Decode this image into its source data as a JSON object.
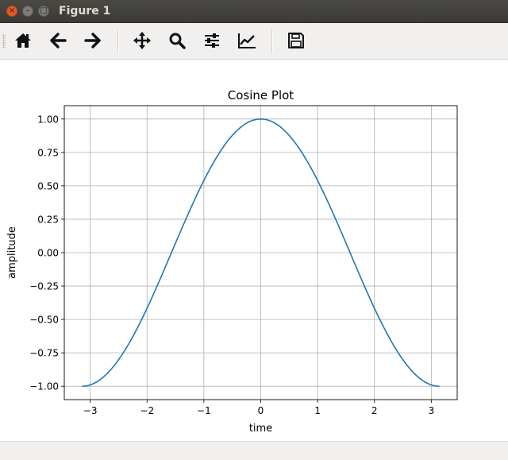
{
  "window": {
    "title": "Figure 1",
    "controls": {
      "close": "×",
      "minimize": "–",
      "maximize": "□"
    }
  },
  "toolbar": {
    "buttons": [
      {
        "name": "home-button",
        "icon": "home-icon"
      },
      {
        "name": "back-button",
        "icon": "arrow-left-icon"
      },
      {
        "name": "forward-button",
        "icon": "arrow-right-icon"
      },
      {
        "name": "pan-button",
        "icon": "move-icon"
      },
      {
        "name": "zoom-button",
        "icon": "magnifier-icon"
      },
      {
        "name": "subplots-button",
        "icon": "sliders-icon"
      },
      {
        "name": "edit-axes-button",
        "icon": "line-chart-icon"
      },
      {
        "name": "save-button",
        "icon": "floppy-disk-icon"
      }
    ]
  },
  "chart_data": {
    "type": "line",
    "title": "Cosine Plot",
    "xlabel": "time",
    "ylabel": "amplitude",
    "function": "cos(t)",
    "x_range": [
      -3.14159,
      3.14159
    ],
    "xlim": [
      -3.45575,
      3.45575
    ],
    "ylim": [
      -1.1,
      1.1
    ],
    "xticks": [
      -3,
      -2,
      -1,
      0,
      1,
      2,
      3
    ],
    "xtick_labels": [
      "−3",
      "−2",
      "−1",
      "0",
      "1",
      "2",
      "3"
    ],
    "yticks": [
      -1.0,
      -0.75,
      -0.5,
      -0.25,
      0.0,
      0.25,
      0.5,
      0.75,
      1.0
    ],
    "ytick_labels": [
      "−1.00",
      "−0.75",
      "−0.50",
      "−0.25",
      "0.00",
      "0.25",
      "0.50",
      "0.75",
      "1.00"
    ],
    "grid": true,
    "line_color": "#1f77b4",
    "series": [
      {
        "x": [
          -3.1416,
          -2.8274,
          -2.5133,
          -2.1991,
          -1.885,
          -1.5708,
          -1.2566,
          -0.9425,
          -0.6283,
          -0.3142,
          0.0,
          0.3142,
          0.6283,
          0.9425,
          1.2566,
          1.5708,
          1.885,
          2.1991,
          2.5133,
          2.8274,
          3.1416
        ],
        "y": [
          -1.0,
          -0.9511,
          -0.809,
          -0.5878,
          -0.309,
          0.0,
          0.309,
          0.5878,
          0.809,
          0.9511,
          1.0,
          0.9511,
          0.809,
          0.5878,
          0.309,
          0.0,
          -0.309,
          -0.5878,
          -0.809,
          -0.9511,
          -1.0
        ]
      }
    ]
  }
}
